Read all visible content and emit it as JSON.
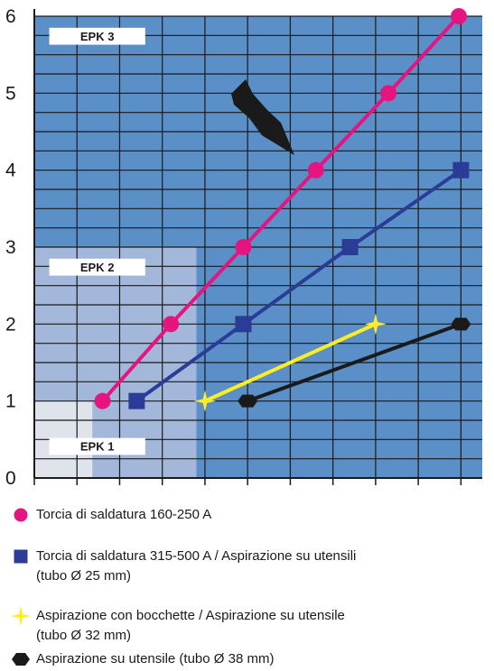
{
  "chart_data": {
    "type": "line",
    "title": "",
    "xlabel": "",
    "ylabel": "",
    "ylim": [
      0,
      6
    ],
    "yticks": [
      "0",
      "1",
      "2",
      "3",
      "4",
      "5",
      "6"
    ],
    "grid": true,
    "zones": [
      {
        "label": "EPK 1",
        "x_max": 1.36,
        "y_max": 1,
        "color": "#dfe3ec"
      },
      {
        "label": "EPK 2",
        "x_max": 3.8,
        "y_max": 3,
        "color": "#a3b7db"
      },
      {
        "label": "EPK 3",
        "x_max": 10.5,
        "y_max": 6,
        "color": "#5b8fc7"
      }
    ],
    "series": [
      {
        "name": "Torcia di saldatura 160-250 A",
        "marker": "circle",
        "color": "#e6147f",
        "points": [
          [
            1.6,
            1
          ],
          [
            3.2,
            2
          ],
          [
            4.9,
            3
          ],
          [
            6.6,
            4
          ],
          [
            8.3,
            5
          ],
          [
            9.95,
            6
          ]
        ]
      },
      {
        "name": "Torcia di saldatura 315-500 A / Aspirazione su utensili\n(tubo Ø 25 mm)",
        "marker": "square",
        "color": "#2a3c96",
        "points": [
          [
            2.4,
            1
          ],
          [
            4.9,
            2
          ],
          [
            7.4,
            3
          ],
          [
            10.0,
            4
          ]
        ]
      },
      {
        "name": "Aspirazione con bocchette / Aspirazione su utensile\n(tubo Ø 32 mm)",
        "marker": "star",
        "color": "#ffee22",
        "points": [
          [
            4.0,
            1
          ],
          [
            8.0,
            2
          ]
        ]
      },
      {
        "name": "Aspirazione su utensile (tubo Ø 38 mm)",
        "marker": "diamond",
        "color": "#1a1a1a",
        "points": [
          [
            5.0,
            1
          ],
          [
            10.0,
            2
          ]
        ]
      }
    ]
  }
}
